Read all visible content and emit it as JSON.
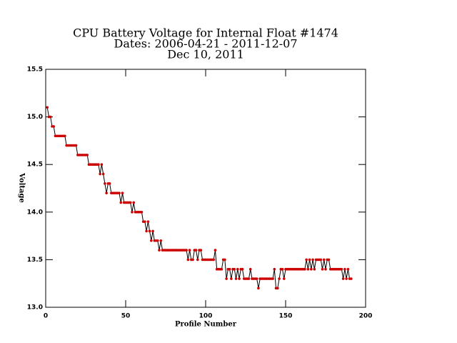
{
  "chart_data": {
    "type": "line",
    "title_lines": [
      "CPU Battery Voltage for Internal Float #1474",
      "Dates:  2006-04-21 -  2011-12-07",
      "Dec 10, 2011"
    ],
    "xlabel": "Profile Number",
    "ylabel": "Voltage",
    "xlim": [
      0,
      200
    ],
    "xticks": [
      0,
      50,
      100,
      150,
      200
    ],
    "ylim": [
      13.0,
      15.5
    ],
    "yticks": [
      {
        "value": 13.0,
        "label": "13.0"
      },
      13.5,
      {
        "value": 14.0,
        "label": "14.0"
      },
      14.5,
      {
        "value": 15.0,
        "label": "15.0"
      },
      15.5
    ],
    "line_color": "#000000",
    "marker_color": "#cc0000",
    "x": [
      1,
      2,
      3,
      4,
      5,
      6,
      7,
      8,
      9,
      10,
      11,
      12,
      13,
      14,
      15,
      16,
      17,
      18,
      19,
      20,
      21,
      22,
      23,
      24,
      25,
      26,
      27,
      28,
      29,
      30,
      31,
      32,
      33,
      34,
      35,
      36,
      37,
      38,
      39,
      40,
      41,
      42,
      43,
      44,
      45,
      46,
      47,
      48,
      49,
      50,
      51,
      52,
      53,
      54,
      55,
      56,
      57,
      58,
      59,
      60,
      61,
      62,
      63,
      64,
      65,
      66,
      67,
      68,
      69,
      70,
      71,
      72,
      73,
      74,
      75,
      76,
      77,
      78,
      79,
      80,
      81,
      82,
      83,
      84,
      85,
      86,
      87,
      88,
      89,
      90,
      91,
      92,
      93,
      94,
      95,
      96,
      97,
      98,
      99,
      100,
      101,
      102,
      103,
      104,
      105,
      106,
      107,
      108,
      109,
      110,
      111,
      112,
      113,
      114,
      115,
      116,
      117,
      118,
      119,
      120,
      121,
      122,
      123,
      124,
      125,
      126,
      127,
      128,
      129,
      130,
      131,
      132,
      133,
      134,
      135,
      136,
      137,
      138,
      139,
      140,
      141,
      142,
      143,
      144,
      145,
      146,
      147,
      148,
      149,
      150,
      151,
      152,
      153,
      154,
      155,
      156,
      157,
      158,
      159,
      160,
      161,
      162,
      163,
      164,
      165,
      166,
      167,
      168,
      169,
      170,
      171,
      172,
      173,
      174,
      175,
      176,
      177,
      178,
      179,
      180,
      181,
      182,
      183,
      184,
      185,
      186,
      187,
      188,
      189,
      190,
      191
    ],
    "values": [
      15.1,
      15.0,
      15.0,
      14.9,
      14.9,
      14.8,
      14.8,
      14.8,
      14.8,
      14.8,
      14.8,
      14.8,
      14.7,
      14.7,
      14.7,
      14.7,
      14.7,
      14.7,
      14.7,
      14.6,
      14.6,
      14.6,
      14.6,
      14.6,
      14.6,
      14.6,
      14.5,
      14.5,
      14.5,
      14.5,
      14.5,
      14.5,
      14.5,
      14.4,
      14.5,
      14.4,
      14.3,
      14.2,
      14.3,
      14.3,
      14.2,
      14.2,
      14.2,
      14.2,
      14.2,
      14.2,
      14.1,
      14.2,
      14.1,
      14.1,
      14.1,
      14.1,
      14.1,
      14.0,
      14.1,
      14.0,
      14.0,
      14.0,
      14.0,
      14.0,
      13.9,
      13.9,
      13.8,
      13.9,
      13.8,
      13.7,
      13.8,
      13.7,
      13.7,
      13.7,
      13.6,
      13.7,
      13.6,
      13.6,
      13.6,
      13.6,
      13.6,
      13.6,
      13.6,
      13.6,
      13.6,
      13.6,
      13.6,
      13.6,
      13.6,
      13.6,
      13.6,
      13.6,
      13.5,
      13.6,
      13.5,
      13.5,
      13.6,
      13.6,
      13.5,
      13.6,
      13.6,
      13.5,
      13.5,
      13.5,
      13.5,
      13.5,
      13.5,
      13.5,
      13.5,
      13.6,
      13.4,
      13.4,
      13.4,
      13.4,
      13.5,
      13.5,
      13.3,
      13.4,
      13.4,
      13.3,
      13.4,
      13.4,
      13.3,
      13.4,
      13.3,
      13.4,
      13.4,
      13.3,
      13.3,
      13.3,
      13.3,
      13.4,
      13.3,
      13.3,
      13.3,
      13.3,
      13.2,
      13.3,
      13.3,
      13.3,
      13.3,
      13.3,
      13.3,
      13.3,
      13.3,
      13.3,
      13.4,
      13.2,
      13.2,
      13.3,
      13.4,
      13.4,
      13.3,
      13.4,
      13.4,
      13.4,
      13.4,
      13.4,
      13.4,
      13.4,
      13.4,
      13.4,
      13.4,
      13.4,
      13.4,
      13.4,
      13.5,
      13.4,
      13.5,
      13.4,
      13.5,
      13.4,
      13.5,
      13.5,
      13.5,
      13.5,
      13.4,
      13.5,
      13.4,
      13.5,
      13.5,
      13.4,
      13.4,
      13.4,
      13.4,
      13.4,
      13.4,
      13.4,
      13.4,
      13.3,
      13.4,
      13.3,
      13.4,
      13.3,
      13.3
    ]
  }
}
